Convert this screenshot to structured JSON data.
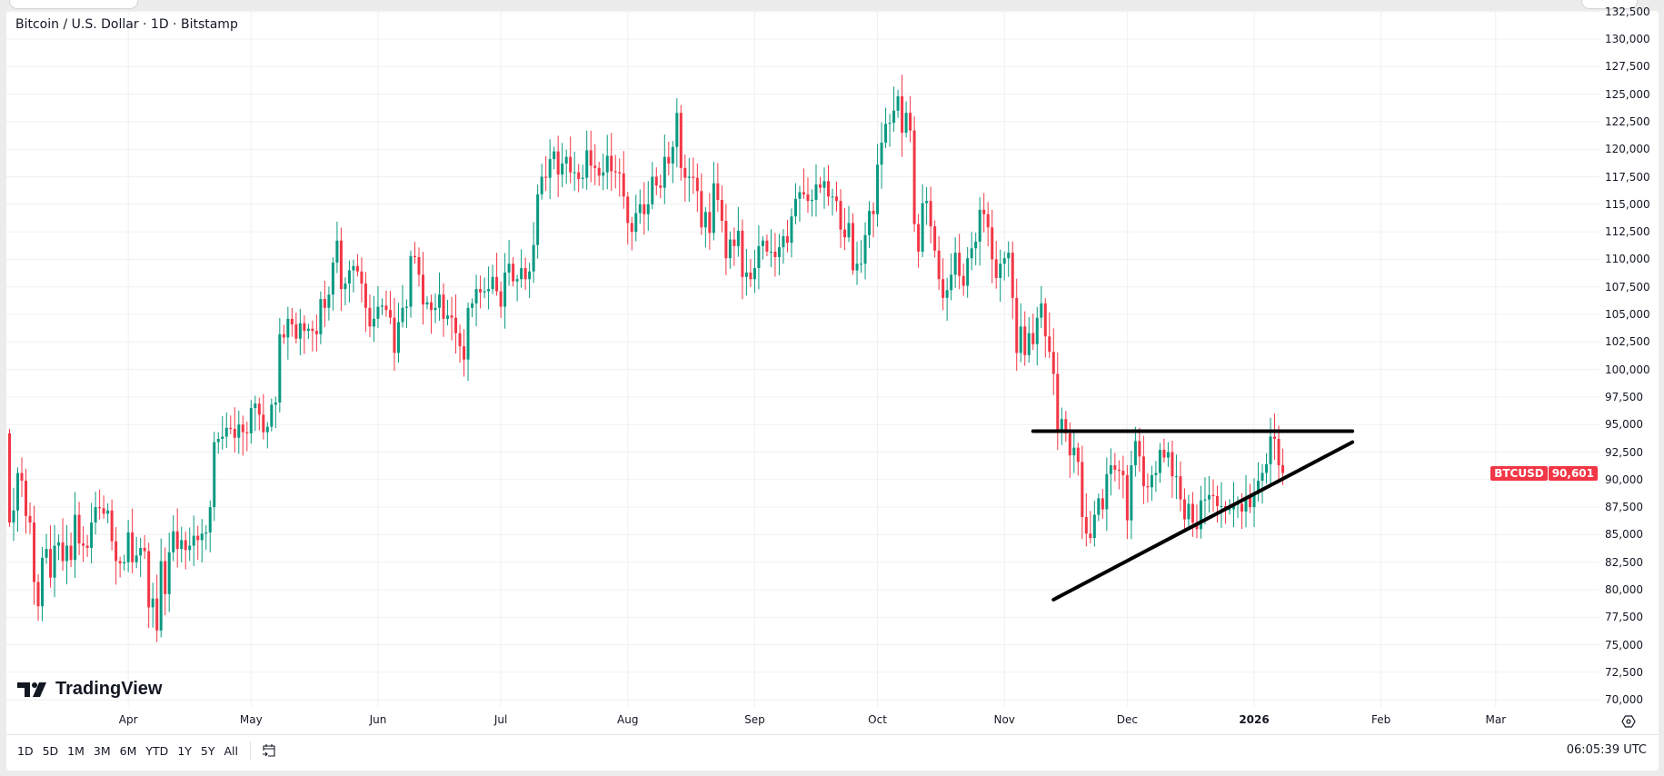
{
  "header": {
    "title": "Bitcoin / U.S. Dollar · 1D · Bitstamp"
  },
  "logo": {
    "text": "TradingView"
  },
  "toolbar": {
    "ranges": [
      "1D",
      "5D",
      "1M",
      "3M",
      "6M",
      "YTD",
      "1Y",
      "5Y",
      "All"
    ],
    "time": "06:05:39 UTC"
  },
  "last_price": {
    "symbol": "BTCUSD",
    "value": "90,601"
  },
  "colors": {
    "up": "#089981",
    "down": "#f23645",
    "line": "#000000",
    "grid": "#f0f0f0"
  },
  "chart_data": {
    "type": "candlestick",
    "ylim": [
      70000,
      132500
    ],
    "y_ticks": [
      132500,
      130000,
      127500,
      125000,
      122500,
      120000,
      117500,
      115000,
      112500,
      110000,
      107500,
      105000,
      102500,
      100000,
      97500,
      95000,
      92500,
      90000,
      87500,
      85000,
      82500,
      80000,
      77500,
      75000,
      72500,
      70000
    ],
    "x_ticks": [
      {
        "date": "2025-04-01",
        "label": "Apr"
      },
      {
        "date": "2025-05-01",
        "label": "May"
      },
      {
        "date": "2025-06-01",
        "label": "Jun"
      },
      {
        "date": "2025-07-01",
        "label": "Jul"
      },
      {
        "date": "2025-08-01",
        "label": "Aug"
      },
      {
        "date": "2025-09-01",
        "label": "Sep"
      },
      {
        "date": "2025-10-01",
        "label": "Oct"
      },
      {
        "date": "2025-11-01",
        "label": "Nov"
      },
      {
        "date": "2025-12-01",
        "label": "Dec"
      },
      {
        "date": "2026-01-01",
        "label": "2026",
        "bold": true
      },
      {
        "date": "2026-02-01",
        "label": "Feb"
      },
      {
        "date": "2026-03-01",
        "label": "Mar"
      }
    ],
    "grid": true,
    "start_date": "2025-03-03",
    "first_open": 94200,
    "closes": [
      86100,
      87200,
      90600,
      89900,
      86700,
      86100,
      80700,
      78500,
      82900,
      83700,
      81100,
      84000,
      84300,
      82600,
      84000,
      82700,
      86800,
      84200,
      84000,
      83800,
      86100,
      87500,
      87400,
      86900,
      87200,
      84400,
      82600,
      82400,
      82500,
      85200,
      82500,
      83100,
      83800,
      83500,
      78400,
      79200,
      76300,
      82600,
      79600,
      83400,
      85300,
      83700,
      84500,
      83600,
      84000,
      84900,
      84500,
      85100,
      85200,
      87500,
      93400,
      93700,
      93900,
      94700,
      94600,
      93800,
      95000,
      94300,
      94200,
      96500,
      96900,
      95900,
      94300,
      94800,
      96800,
      97000,
      103200,
      102900,
      104600,
      104100,
      102800,
      104200,
      103500,
      103700,
      103500,
      103200,
      106400,
      105600,
      106800,
      109700,
      111700,
      107300,
      107800,
      109000,
      109400,
      108900,
      107800,
      105600,
      103900,
      104600,
      105700,
      105800,
      105400,
      104700,
      101500,
      104300,
      105600,
      105700,
      110300,
      110200,
      108600,
      105900,
      106100,
      105400,
      105600,
      106800,
      104600,
      104900,
      104700,
      103300,
      102100,
      100900,
      105600,
      106000,
      107300,
      107000,
      107100,
      107300,
      108400,
      107100,
      105700,
      108800,
      109600,
      108000,
      108200,
      109200,
      108200,
      108900,
      111300,
      115900,
      117500,
      117400,
      119100,
      119800,
      117700,
      118700,
      119300,
      117900,
      117900,
      117300,
      117400,
      119900,
      118500,
      118300,
      117600,
      117900,
      119400,
      118000,
      117900,
      117800,
      115700,
      113300,
      112500,
      114200,
      115000,
      114100,
      115000,
      117500,
      116700,
      116500,
      119300,
      118700,
      120200,
      123300,
      118300,
      117400,
      117500,
      117400,
      116200,
      112900,
      114300,
      112400,
      116900,
      115400,
      113500,
      110100,
      111800,
      111200,
      112600,
      108400,
      108800,
      108200,
      109200,
      111200,
      111700,
      110700,
      110700,
      110200,
      111100,
      112100,
      111500,
      113900,
      115500,
      116100,
      115900,
      115300,
      115400,
      116800,
      116500,
      117100,
      115700,
      115700,
      115300,
      112700,
      112000,
      113300,
      109000,
      109600,
      109600,
      112200,
      114400,
      114100,
      118600,
      120600,
      122300,
      122400,
      123500,
      124800,
      121500,
      123300,
      121700,
      113200,
      110700,
      115100,
      115300,
      113000,
      110800,
      108200,
      106500,
      107200,
      108600,
      110600,
      108500,
      107600,
      110100,
      111000,
      111600,
      114500,
      114100,
      112900,
      110000,
      108300,
      109600,
      110100,
      110600,
      106500,
      101500,
      103900,
      101300,
      103300,
      102300,
      104700,
      106000,
      103000,
      101600,
      99600,
      94500,
      95500,
      94200,
      92200,
      92900,
      91600,
      86600,
      85100,
      84700,
      86800,
      88300,
      87300,
      90500,
      91300,
      90900,
      90800,
      90400,
      86300,
      91300,
      93500,
      92100,
      89400,
      89300,
      90400,
      90600,
      92700,
      92000,
      92500,
      90300,
      90300,
      88200,
      86400,
      87800,
      86100,
      85500,
      88100,
      88200,
      88600,
      88500,
      87600,
      87600,
      87300,
      87300,
      87800,
      87800,
      87100,
      88400,
      87500,
      88700,
      89900,
      90600,
      91400,
      93900,
      93700,
      91300,
      90601
    ],
    "trendlines": [
      {
        "from": {
          "date": "2025-11-08",
          "price": 94400
        },
        "to": {
          "date": "2026-01-25",
          "price": 94400
        }
      },
      {
        "from": {
          "date": "2025-11-13",
          "price": 79100
        },
        "to": {
          "date": "2026-01-25",
          "price": 93400
        }
      }
    ]
  }
}
